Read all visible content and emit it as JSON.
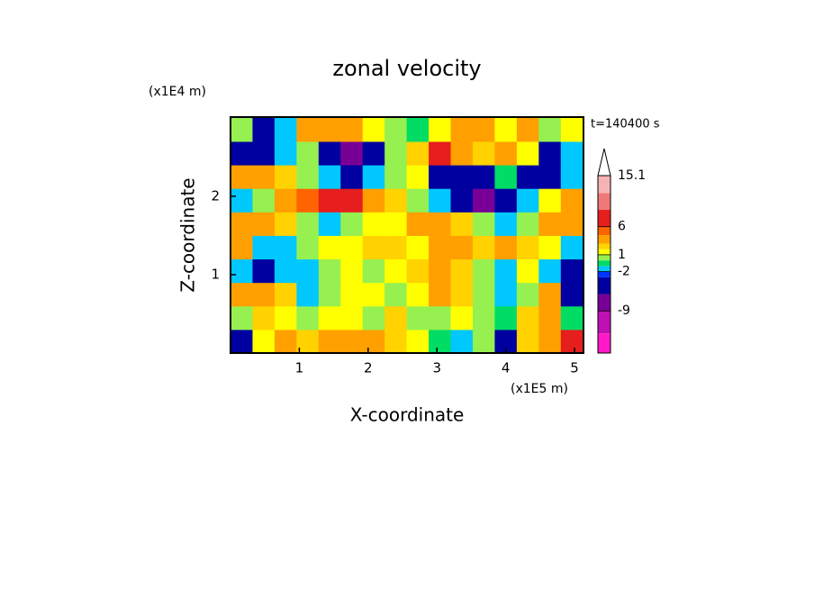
{
  "chart_data": {
    "type": "contour",
    "title": "zonal velocity",
    "x_label": "X-coordinate",
    "y_label": "Z-coordinate",
    "x_unit": "(x1E5 m)",
    "y_unit": "(x1E4 m)",
    "annotation": "t=140400 s",
    "xlim": [
      0,
      5.13
    ],
    "ylim": [
      0,
      3.01
    ],
    "xticks": [
      1,
      2,
      3,
      4,
      5
    ],
    "yticks": [
      1,
      2
    ],
    "x": [
      0.16,
      0.48,
      0.8,
      1.12,
      1.44,
      1.76,
      2.08,
      2.4,
      2.72,
      3.04,
      3.36,
      3.68,
      4.0,
      4.32,
      4.64,
      4.96
    ],
    "y": [
      0.15,
      0.45,
      0.75,
      1.05,
      1.35,
      1.65,
      1.95,
      2.25,
      2.55,
      2.85
    ],
    "values": [
      [
        -5,
        1.5,
        3,
        2,
        3,
        3,
        3.5,
        2,
        1.5,
        -1,
        -1.5,
        0.5,
        -4,
        2,
        4,
        6.5
      ],
      [
        0,
        2,
        1.5,
        0.5,
        1.5,
        1.5,
        0.5,
        2,
        0.5,
        0.5,
        1.5,
        0.5,
        -1,
        2,
        3,
        -1
      ],
      [
        3,
        3,
        2,
        -1.5,
        0,
        1.5,
        1.5,
        0.5,
        1.5,
        3,
        2,
        0.5,
        -1.5,
        0.5,
        3,
        -5
      ],
      [
        -1.5,
        -4,
        -2,
        -1.5,
        0,
        1.5,
        0,
        1.5,
        2,
        3,
        2,
        0.5,
        -1.5,
        1.5,
        -1.5,
        -4
      ],
      [
        3,
        -2,
        -1.5,
        0,
        1.5,
        1.5,
        2,
        2,
        1.5,
        3,
        3.5,
        2,
        3,
        2,
        1.5,
        -1.5
      ],
      [
        4,
        3,
        2,
        0.5,
        -1.5,
        0.5,
        1.5,
        1.5,
        3,
        4,
        2,
        0.5,
        -1.5,
        0,
        3,
        4
      ],
      [
        -1.5,
        0,
        3,
        5,
        6.5,
        6.5,
        4,
        2,
        0,
        -1.5,
        -6,
        -8,
        -6,
        -2,
        1.5,
        3
      ],
      [
        4,
        3,
        2,
        0.5,
        -1.5,
        -4,
        -1.5,
        0.5,
        1.5,
        -6,
        -6,
        -4,
        -1,
        -4,
        -6,
        -1.5
      ],
      [
        -5,
        -4,
        -1.5,
        0.5,
        -5,
        -7,
        -5,
        0.5,
        2,
        7,
        4,
        2,
        3,
        1.5,
        -5,
        -1.5
      ],
      [
        0.5,
        -4,
        -1.5,
        4,
        4,
        3,
        1.5,
        0.5,
        -1,
        1.5,
        3,
        3.5,
        1.5,
        3,
        0,
        1.5
      ]
    ],
    "colorbar": {
      "levels": [
        -16.5,
        -13,
        -9,
        -6,
        -3,
        -2,
        -1,
        0,
        1,
        2,
        3,
        4.5,
        6,
        9,
        12,
        15.1
      ],
      "colors": [
        "#ff19c8",
        "#c00fb4",
        "#780096",
        "#0000a0",
        "#0032ff",
        "#00c8ff",
        "#00dc64",
        "#96f050",
        "#ffff00",
        "#ffd200",
        "#ffa000",
        "#ff6400",
        "#e61e1e",
        "#f07878",
        "#f5b4b4"
      ],
      "ticks": [
        -9,
        -2,
        1,
        6,
        15.1
      ]
    }
  }
}
